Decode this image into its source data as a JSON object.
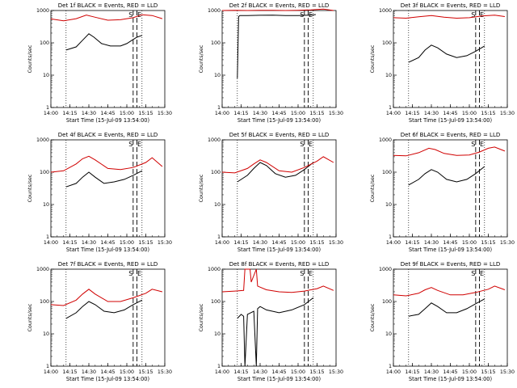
{
  "chart_data": [
    {
      "type": "line",
      "title": "Det 1f BLACK = Events, RED = LLD",
      "xlabel": "Start Time (15-Jul-09 13:54:00)",
      "ylabel": "Counts/sec",
      "yscale": "log",
      "ylim": [
        1,
        1000
      ],
      "xlim": [
        "14:00",
        "15:30"
      ],
      "x_ticks": [
        "14:00",
        "14:15",
        "14:30",
        "14:45",
        "15:00",
        "15:15",
        "15:30"
      ],
      "y_ticks": [
        "1",
        "10",
        "100",
        "1000"
      ],
      "markers": [
        {
          "label": "S",
          "time": "15:05"
        },
        {
          "label": "E",
          "time": "15:08"
        }
      ],
      "dotted_lines": [
        "14:12",
        "15:12"
      ],
      "series": [
        {
          "name": "Events",
          "color": "#000000",
          "x": [
            "14:12",
            "14:20",
            "14:25",
            "14:30",
            "14:34",
            "14:40",
            "14:47",
            "14:55",
            "15:00",
            "15:04",
            "15:08",
            "15:12"
          ],
          "values": [
            60,
            75,
            120,
            190,
            150,
            95,
            80,
            80,
            95,
            120,
            150,
            170
          ]
        },
        {
          "name": "LLD",
          "color": "#d00000",
          "x": [
            "14:00",
            "14:10",
            "14:20",
            "14:28",
            "14:35",
            "14:45",
            "14:55",
            "15:05",
            "15:12",
            "15:20",
            "15:28"
          ],
          "values": [
            550,
            480,
            560,
            720,
            620,
            500,
            520,
            600,
            740,
            700,
            560
          ]
        }
      ]
    },
    {
      "type": "line",
      "title": "Det 2f BLACK = Events, RED = LLD",
      "xlabel": "Start Time (15-Jul-09 13:54:00)",
      "ylabel": "Counts/sec",
      "yscale": "log",
      "ylim": [
        1,
        1000
      ],
      "xlim": [
        "14:00",
        "15:30"
      ],
      "x_ticks": [
        "14:00",
        "14:15",
        "14:30",
        "14:45",
        "15:00",
        "15:15",
        "15:30"
      ],
      "y_ticks": [
        "1",
        "10",
        "100",
        "1000"
      ],
      "markers": [
        {
          "label": "S",
          "time": "15:05"
        },
        {
          "label": "E",
          "time": "15:08"
        }
      ],
      "dotted_lines": [
        "14:12",
        "15:12"
      ],
      "series": [
        {
          "name": "Events",
          "color": "#000000",
          "x": [
            "14:12",
            "14:13",
            "14:14",
            "14:20",
            "14:30",
            "14:40",
            "14:50",
            "15:00",
            "15:10",
            "15:14"
          ],
          "values": [
            8,
            650,
            700,
            700,
            710,
            720,
            700,
            700,
            720,
            750
          ]
        },
        {
          "name": "LLD",
          "color": "#d00000",
          "x": [
            "14:00",
            "14:10",
            "14:20",
            "14:30",
            "14:40",
            "14:50",
            "15:00",
            "15:10",
            "15:20",
            "15:28"
          ],
          "values": [
            1000,
            1010,
            1000,
            1020,
            1010,
            1000,
            1020,
            1050,
            1100,
            1000
          ]
        }
      ]
    },
    {
      "type": "line",
      "title": "Det 3f BLACK = Events, RED = LLD",
      "xlabel": "Start Time (15-Jul-09 13:54:00)",
      "ylabel": "Counts/sec",
      "yscale": "log",
      "ylim": [
        1,
        1000
      ],
      "xlim": [
        "14:00",
        "15:30"
      ],
      "x_ticks": [
        "14:00",
        "14:15",
        "14:30",
        "14:45",
        "15:00",
        "15:15",
        "15:30"
      ],
      "y_ticks": [
        "1",
        "10",
        "100",
        "1000"
      ],
      "markers": [
        {
          "label": "S",
          "time": "15:05"
        },
        {
          "label": "E",
          "time": "15:08"
        }
      ],
      "dotted_lines": [
        "14:12",
        "15:12"
      ],
      "series": [
        {
          "name": "Events",
          "color": "#000000",
          "x": [
            "14:12",
            "14:20",
            "14:25",
            "14:30",
            "14:35",
            "14:42",
            "14:50",
            "14:58",
            "15:05",
            "15:12"
          ],
          "values": [
            25,
            35,
            60,
            85,
            70,
            45,
            35,
            40,
            55,
            80
          ]
        },
        {
          "name": "LLD",
          "color": "#d00000",
          "x": [
            "14:00",
            "14:10",
            "14:20",
            "14:30",
            "14:40",
            "14:50",
            "15:00",
            "15:10",
            "15:20",
            "15:28"
          ],
          "values": [
            600,
            580,
            640,
            700,
            620,
            580,
            600,
            680,
            720,
            650
          ]
        }
      ]
    },
    {
      "type": "line",
      "title": "Det 4f BLACK = Events, RED = LLD",
      "xlabel": "Start Time (15-Jul-09 13:54:00)",
      "ylabel": "Counts/sec",
      "yscale": "log",
      "ylim": [
        1,
        1000
      ],
      "xlim": [
        "14:00",
        "15:30"
      ],
      "x_ticks": [
        "14:00",
        "14:15",
        "14:30",
        "14:45",
        "15:00",
        "15:15",
        "15:30"
      ],
      "y_ticks": [
        "1",
        "10",
        "100",
        "1000"
      ],
      "markers": [
        {
          "label": "S",
          "time": "15:05"
        },
        {
          "label": "E",
          "time": "15:08"
        }
      ],
      "dotted_lines": [
        "14:12",
        "15:12"
      ],
      "series": [
        {
          "name": "Events",
          "color": "#000000",
          "x": [
            "14:12",
            "14:20",
            "14:25",
            "14:30",
            "14:35",
            "14:42",
            "14:50",
            "14:58",
            "15:05",
            "15:12"
          ],
          "values": [
            35,
            45,
            70,
            100,
            70,
            45,
            50,
            60,
            80,
            110
          ]
        },
        {
          "name": "LLD",
          "color": "#d00000",
          "x": [
            "14:00",
            "14:10",
            "14:20",
            "14:25",
            "14:30",
            "14:35",
            "14:45",
            "14:55",
            "15:05",
            "15:15",
            "15:20",
            "15:28"
          ],
          "values": [
            100,
            110,
            180,
            260,
            310,
            240,
            130,
            120,
            140,
            200,
            280,
            150
          ]
        }
      ]
    },
    {
      "type": "line",
      "title": "Det 5f BLACK = Events, RED = LLD",
      "xlabel": "Start Time (15-Jul-09 13:54:00)",
      "ylabel": "Counts/sec",
      "yscale": "log",
      "ylim": [
        1,
        1000
      ],
      "xlim": [
        "14:00",
        "15:30"
      ],
      "x_ticks": [
        "14:00",
        "14:15",
        "14:30",
        "14:45",
        "15:00",
        "15:15",
        "15:30"
      ],
      "y_ticks": [
        "1",
        "10",
        "100",
        "1000"
      ],
      "markers": [
        {
          "label": "S",
          "time": "15:05"
        },
        {
          "label": "E",
          "time": "15:08"
        }
      ],
      "dotted_lines": [
        "14:12",
        "15:12"
      ],
      "series": [
        {
          "name": "Events",
          "color": "#000000",
          "x": [
            "14:12",
            "14:20",
            "14:25",
            "14:30",
            "14:35",
            "14:42",
            "14:50",
            "14:58",
            "15:05",
            "15:12"
          ],
          "values": [
            50,
            80,
            130,
            200,
            160,
            90,
            70,
            80,
            120,
            200
          ]
        },
        {
          "name": "LLD",
          "color": "#d00000",
          "x": [
            "14:00",
            "14:10",
            "14:20",
            "14:25",
            "14:30",
            "14:35",
            "14:45",
            "14:55",
            "15:05",
            "15:15",
            "15:20",
            "15:28"
          ],
          "values": [
            100,
            95,
            130,
            180,
            240,
            200,
            110,
            100,
            140,
            220,
            300,
            200
          ]
        }
      ]
    },
    {
      "type": "line",
      "title": "Det 6f BLACK = Events, RED = LLD",
      "xlabel": "Start Time (15-Jul-09 13:54:00)",
      "ylabel": "Counts/sec",
      "yscale": "log",
      "ylim": [
        1,
        1000
      ],
      "xlim": [
        "14:00",
        "15:30"
      ],
      "x_ticks": [
        "14:00",
        "14:15",
        "14:30",
        "14:45",
        "15:00",
        "15:15",
        "15:30"
      ],
      "y_ticks": [
        "1",
        "10",
        "100",
        "1000"
      ],
      "markers": [
        {
          "label": "S",
          "time": "15:05"
        },
        {
          "label": "E",
          "time": "15:08"
        }
      ],
      "dotted_lines": [
        "14:12",
        "15:12"
      ],
      "series": [
        {
          "name": "Events",
          "color": "#000000",
          "x": [
            "14:12",
            "14:20",
            "14:25",
            "14:30",
            "14:35",
            "14:42",
            "14:50",
            "14:58",
            "15:05",
            "15:12"
          ],
          "values": [
            40,
            60,
            90,
            120,
            100,
            60,
            50,
            60,
            90,
            150
          ]
        },
        {
          "name": "LLD",
          "color": "#d00000",
          "x": [
            "14:00",
            "14:10",
            "14:20",
            "14:28",
            "14:33",
            "14:40",
            "14:50",
            "15:00",
            "15:08",
            "15:15",
            "15:20",
            "15:28"
          ],
          "values": [
            330,
            320,
            400,
            550,
            500,
            380,
            330,
            340,
            420,
            550,
            600,
            450
          ]
        }
      ]
    },
    {
      "type": "line",
      "title": "Det 7f BLACK = Events, RED = LLD",
      "xlabel": "Start Time (15-Jul-09 13:54:00)",
      "ylabel": "Counts/sec",
      "yscale": "log",
      "ylim": [
        1,
        1000
      ],
      "xlim": [
        "14:00",
        "15:30"
      ],
      "x_ticks": [
        "14:00",
        "14:15",
        "14:30",
        "14:45",
        "15:00",
        "15:15",
        "15:30"
      ],
      "y_ticks": [
        "1",
        "10",
        "100",
        "1000"
      ],
      "markers": [
        {
          "label": "S",
          "time": "15:05"
        },
        {
          "label": "E",
          "time": "15:08"
        }
      ],
      "dotted_lines": [
        "14:12",
        "15:12"
      ],
      "series": [
        {
          "name": "Events",
          "color": "#000000",
          "x": [
            "14:12",
            "14:20",
            "14:25",
            "14:30",
            "14:35",
            "14:42",
            "14:50",
            "14:58",
            "15:05",
            "15:12"
          ],
          "values": [
            30,
            45,
            70,
            100,
            80,
            50,
            45,
            55,
            80,
            110
          ]
        },
        {
          "name": "LLD",
          "color": "#d00000",
          "x": [
            "14:00",
            "14:10",
            "14:20",
            "14:25",
            "14:30",
            "14:35",
            "14:45",
            "14:55",
            "15:05",
            "15:15",
            "15:20",
            "15:28"
          ],
          "values": [
            80,
            75,
            110,
            170,
            240,
            170,
            100,
            100,
            130,
            180,
            240,
            200
          ]
        }
      ]
    },
    {
      "type": "line",
      "title": "Det 8f BLACK = Events, RED = LLD",
      "xlabel": "Start Time (15-Jul-09 13:54:00)",
      "ylabel": "Counts/sec",
      "yscale": "log",
      "ylim": [
        1,
        1000
      ],
      "xlim": [
        "14:00",
        "15:30"
      ],
      "x_ticks": [
        "14:00",
        "14:15",
        "14:30",
        "14:45",
        "15:00",
        "15:15",
        "15:30"
      ],
      "y_ticks": [
        "1",
        "10",
        "100",
        "1000"
      ],
      "markers": [
        {
          "label": "S",
          "time": "15:05"
        },
        {
          "label": "E",
          "time": "15:08"
        }
      ],
      "dotted_lines": [
        "14:12",
        "15:12"
      ],
      "series": [
        {
          "name": "Events",
          "color": "#000000",
          "x": [
            "14:12",
            "14:15",
            "14:17",
            "14:18",
            "14:20",
            "14:25",
            "14:27",
            "14:28",
            "14:30",
            "14:35",
            "14:45",
            "14:55",
            "15:05",
            "15:12"
          ],
          "values": [
            30,
            40,
            35,
            1,
            40,
            50,
            1,
            60,
            70,
            55,
            45,
            55,
            80,
            130
          ]
        },
        {
          "name": "LLD",
          "color": "#d00000",
          "x": [
            "14:00",
            "14:10",
            "14:17",
            "14:18",
            "14:22",
            "14:23",
            "14:27",
            "14:28",
            "14:35",
            "14:45",
            "14:55",
            "15:05",
            "15:15",
            "15:20",
            "15:28"
          ],
          "values": [
            200,
            210,
            220,
            1000,
            1000,
            400,
            1000,
            300,
            230,
            200,
            190,
            210,
            250,
            300,
            220
          ]
        }
      ]
    },
    {
      "type": "line",
      "title": "Det 9f BLACK = Events, RED = LLD",
      "xlabel": "Start Time (15-Jul-09 13:54:00)",
      "ylabel": "Counts/sec",
      "yscale": "log",
      "ylim": [
        1,
        1000
      ],
      "xlim": [
        "14:00",
        "15:30"
      ],
      "x_ticks": [
        "14:00",
        "14:15",
        "14:30",
        "14:45",
        "15:00",
        "15:15",
        "15:30"
      ],
      "y_ticks": [
        "1",
        "10",
        "100",
        "1000"
      ],
      "markers": [
        {
          "label": "S",
          "time": "15:05"
        },
        {
          "label": "E",
          "time": "15:08"
        }
      ],
      "dotted_lines": [
        "14:12",
        "15:12"
      ],
      "series": [
        {
          "name": "Events",
          "color": "#000000",
          "x": [
            "14:12",
            "14:20",
            "14:25",
            "14:30",
            "14:35",
            "14:42",
            "14:50",
            "14:58",
            "15:05",
            "15:12"
          ],
          "values": [
            35,
            40,
            60,
            90,
            70,
            45,
            45,
            60,
            85,
            120
          ]
        },
        {
          "name": "LLD",
          "color": "#d00000",
          "x": [
            "14:00",
            "14:10",
            "14:20",
            "14:25",
            "14:30",
            "14:35",
            "14:45",
            "14:55",
            "15:05",
            "15:15",
            "15:20",
            "15:28"
          ],
          "values": [
            160,
            150,
            180,
            230,
            270,
            220,
            160,
            160,
            190,
            240,
            300,
            230
          ]
        }
      ]
    }
  ]
}
